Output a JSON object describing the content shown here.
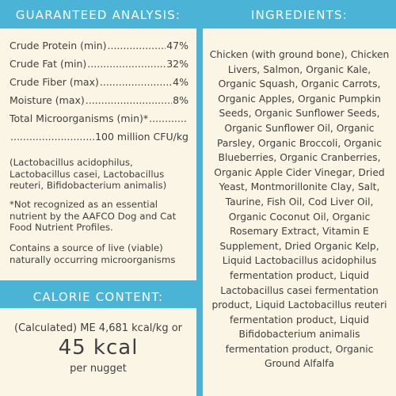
{
  "analysis": {
    "title": "GUARANTEED ANALYSIS:",
    "rows": [
      {
        "label": "Crude Protein (min)",
        "value": "47%"
      },
      {
        "label": "Crude Fat (min)",
        "value": "32%"
      },
      {
        "label": "Crude Fiber (max)",
        "value": "4%"
      },
      {
        "label": "Moisture (max)",
        "value": "8%"
      }
    ],
    "micro_label": "Total Microorganisms (min)*",
    "micro_value": "100 million CFU/kg",
    "strains": "(Lactobacillus acidophilus, Lactobacillus casei, Lactobacillus reuteri, Bifidobacterium animalis)",
    "footnote": "*Not recognized as an essential nutrient by the AAFCO Dog and Cat Food Nutrient Profiles.",
    "source_note": "Contains a source of live (viable) naturally occurring microorganisms"
  },
  "calorie": {
    "title": "CALORIE CONTENT:",
    "line1": "(Calculated) ME 4,681 kcal/kg or",
    "big": "45 kcal",
    "unit": "per nugget"
  },
  "ingredients": {
    "title": "INGREDIENTS:",
    "text": "Chicken (with ground bone), Chicken Livers, Salmon, Organic Kale, Organic Squash, Organic Carrots, Organic Apples, Organic Pumpkin Seeds, Organic Sunflower Seeds, Organic Sunflower Oil, Organic Parsley, Organic Broccoli, Organic Blueberries, Organic Cranberries, Organic Apple Cider Vinegar, Dried Yeast, Montmorillonite Clay, Salt, Taurine, Fish Oil, Cod Liver Oil, Organic Coconut Oil, Organic Rosemary Extract, Vitamin E Supplement, Dried Organic Kelp, Liquid Lactobacillus acidophilus fermentation product, Liquid Lactobacillus casei fermentation product, Liquid Lactobacillus reuteri fermentation product, Liquid Bifidobacterium animalis fermentation product, Organic Ground Alfalfa"
  },
  "colors": {
    "accent": "#4bb3d6",
    "panel": "#fbf5e6",
    "text": "#3f3f3f"
  }
}
